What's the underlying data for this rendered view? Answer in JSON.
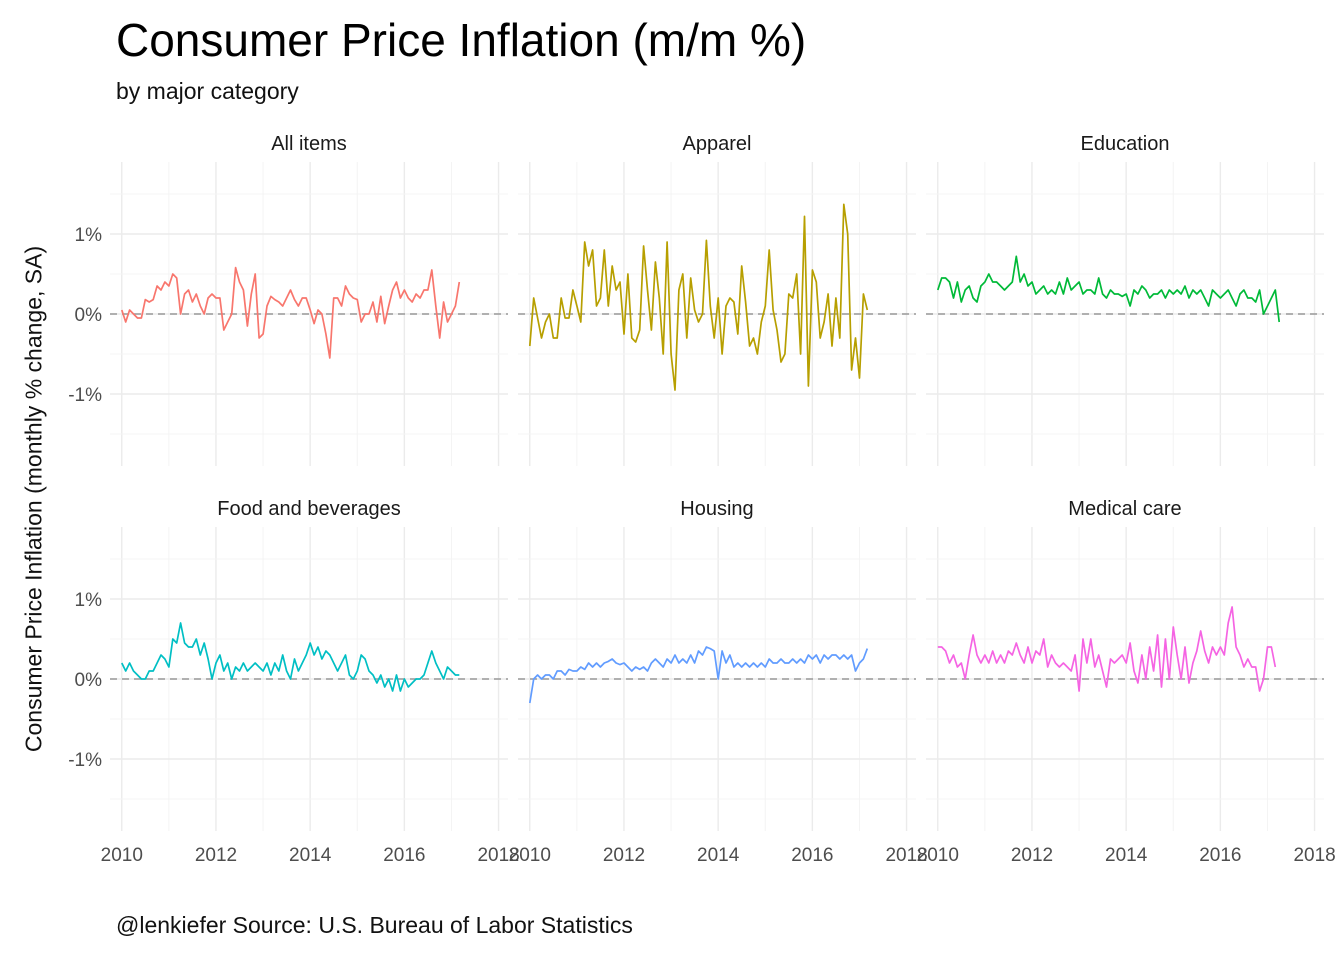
{
  "chart_data": {
    "type": "line",
    "title": "Consumer Price Inflation (m/m %)",
    "subtitle": "by major category",
    "ylabel": "Consumer Price Inflation (monthly % change, SA)",
    "xlabel": "",
    "caption": "@lenkiefer Source: U.S. Bureau of Labor Statistics",
    "xlim": [
      2009.75,
      2018.2
    ],
    "ylim": [
      -1.9,
      1.9
    ],
    "x_ticks": [
      2010,
      2012,
      2014,
      2016,
      2018
    ],
    "x_tick_labels": [
      "2010",
      "2012",
      "2014",
      "2016",
      "2018"
    ],
    "y_ticks": [
      -1,
      0,
      1
    ],
    "y_tick_labels": [
      "-1%",
      "0%",
      "1%"
    ],
    "grid": true,
    "reference_line": {
      "y": 0,
      "style": "dashed"
    },
    "x_start": 2010.0,
    "x_step": 0.08333,
    "panels": [
      {
        "name": "All items",
        "color": "#F8766D",
        "values": [
          0.05,
          -0.1,
          0.05,
          0.0,
          -0.05,
          -0.05,
          0.18,
          0.15,
          0.18,
          0.35,
          0.3,
          0.4,
          0.35,
          0.5,
          0.45,
          0.0,
          0.25,
          0.3,
          0.15,
          0.25,
          0.1,
          0.0,
          0.2,
          0.25,
          0.2,
          0.2,
          -0.2,
          -0.1,
          0.0,
          0.58,
          0.4,
          0.3,
          -0.15,
          0.25,
          0.5,
          -0.3,
          -0.25,
          0.1,
          0.22,
          0.18,
          0.15,
          0.1,
          0.2,
          0.3,
          0.18,
          0.1,
          0.2,
          0.2,
          0.05,
          -0.12,
          0.05,
          0.0,
          -0.25,
          -0.55,
          0.2,
          0.2,
          0.1,
          0.35,
          0.25,
          0.2,
          0.18,
          -0.1,
          0.0,
          0.0,
          0.15,
          -0.1,
          0.22,
          -0.12,
          0.1,
          0.3,
          0.4,
          0.2,
          0.3,
          0.2,
          0.15,
          0.25,
          0.2,
          0.3,
          0.3,
          0.55,
          0.1,
          -0.3,
          0.15,
          -0.1,
          0.0,
          0.1,
          0.4
        ]
      },
      {
        "name": "Apparel",
        "color": "#B79F00",
        "values": [
          -0.4,
          0.2,
          -0.05,
          -0.3,
          -0.1,
          0.0,
          -0.3,
          -0.3,
          0.2,
          -0.05,
          -0.05,
          0.3,
          0.1,
          -0.1,
          0.9,
          0.6,
          0.8,
          0.1,
          0.2,
          0.8,
          0.1,
          0.6,
          0.3,
          0.4,
          -0.25,
          0.5,
          -0.3,
          -0.35,
          -0.2,
          0.85,
          0.3,
          -0.2,
          0.65,
          0.2,
          -0.5,
          0.9,
          -0.5,
          -0.95,
          0.3,
          0.5,
          -0.3,
          0.45,
          0.05,
          -0.1,
          0.0,
          0.92,
          0.1,
          -0.3,
          0.2,
          -0.5,
          0.1,
          0.2,
          0.15,
          -0.25,
          0.6,
          0.15,
          -0.4,
          -0.3,
          -0.5,
          -0.1,
          0.1,
          0.8,
          0.05,
          -0.2,
          -0.6,
          -0.5,
          0.25,
          0.2,
          0.5,
          -0.5,
          1.22,
          -0.9,
          0.55,
          0.4,
          -0.3,
          -0.1,
          0.25,
          -0.4,
          0.2,
          -0.3,
          1.37,
          1.0,
          -0.7,
          -0.3,
          -0.8,
          0.25,
          0.05
        ]
      },
      {
        "name": "Education",
        "color": "#00BA38",
        "values": [
          0.3,
          0.45,
          0.45,
          0.4,
          0.2,
          0.4,
          0.15,
          0.3,
          0.35,
          0.2,
          0.15,
          0.35,
          0.4,
          0.5,
          0.4,
          0.4,
          0.35,
          0.3,
          0.35,
          0.4,
          0.72,
          0.4,
          0.5,
          0.35,
          0.4,
          0.25,
          0.3,
          0.35,
          0.25,
          0.3,
          0.25,
          0.4,
          0.25,
          0.45,
          0.3,
          0.35,
          0.4,
          0.25,
          0.3,
          0.3,
          0.25,
          0.45,
          0.25,
          0.2,
          0.3,
          0.25,
          0.25,
          0.22,
          0.25,
          0.1,
          0.3,
          0.25,
          0.35,
          0.3,
          0.2,
          0.25,
          0.25,
          0.3,
          0.2,
          0.3,
          0.25,
          0.3,
          0.25,
          0.35,
          0.2,
          0.3,
          0.25,
          0.3,
          0.2,
          0.1,
          0.3,
          0.25,
          0.2,
          0.25,
          0.3,
          0.2,
          0.1,
          0.25,
          0.3,
          0.2,
          0.2,
          0.15,
          0.3,
          0.0,
          0.1,
          0.2,
          0.3,
          -0.1
        ]
      },
      {
        "name": "Food and beverages",
        "color": "#00BFC4",
        "values": [
          0.2,
          0.1,
          0.2,
          0.1,
          0.05,
          0.0,
          0.0,
          0.1,
          0.1,
          0.2,
          0.3,
          0.25,
          0.15,
          0.5,
          0.45,
          0.7,
          0.45,
          0.4,
          0.4,
          0.5,
          0.3,
          0.45,
          0.25,
          0.0,
          0.2,
          0.3,
          0.1,
          0.2,
          0.0,
          0.15,
          0.1,
          0.2,
          0.1,
          0.15,
          0.2,
          0.15,
          0.1,
          0.2,
          0.05,
          0.2,
          0.1,
          0.3,
          0.1,
          0.0,
          0.25,
          0.1,
          0.2,
          0.3,
          0.45,
          0.3,
          0.4,
          0.25,
          0.35,
          0.3,
          0.2,
          0.1,
          0.2,
          0.3,
          0.05,
          0.0,
          0.1,
          0.3,
          0.25,
          0.1,
          0.05,
          -0.05,
          0.05,
          -0.1,
          0.0,
          -0.15,
          0.05,
          -0.15,
          0.0,
          -0.1,
          -0.05,
          0.0,
          0.0,
          0.05,
          0.2,
          0.35,
          0.2,
          0.1,
          0.0,
          0.15,
          0.1,
          0.05,
          0.05
        ]
      },
      {
        "name": "Housing",
        "color": "#619CFF",
        "values": [
          -0.3,
          0.0,
          0.05,
          0.0,
          0.05,
          0.05,
          0.0,
          0.1,
          0.1,
          0.05,
          0.12,
          0.1,
          0.1,
          0.15,
          0.12,
          0.2,
          0.15,
          0.2,
          0.15,
          0.2,
          0.22,
          0.25,
          0.2,
          0.18,
          0.2,
          0.15,
          0.1,
          0.15,
          0.12,
          0.15,
          0.1,
          0.2,
          0.25,
          0.2,
          0.15,
          0.25,
          0.2,
          0.3,
          0.2,
          0.25,
          0.2,
          0.3,
          0.2,
          0.35,
          0.3,
          0.4,
          0.38,
          0.35,
          0.0,
          0.35,
          0.2,
          0.3,
          0.15,
          0.2,
          0.15,
          0.2,
          0.15,
          0.2,
          0.15,
          0.2,
          0.15,
          0.25,
          0.2,
          0.2,
          0.25,
          0.2,
          0.2,
          0.25,
          0.2,
          0.25,
          0.2,
          0.3,
          0.25,
          0.3,
          0.2,
          0.3,
          0.25,
          0.3,
          0.3,
          0.25,
          0.3,
          0.25,
          0.3,
          0.1,
          0.2,
          0.25,
          0.38
        ]
      },
      {
        "name": "Medical care",
        "color": "#F564E3",
        "values": [
          0.4,
          0.4,
          0.35,
          0.2,
          0.3,
          0.15,
          0.2,
          0.0,
          0.3,
          0.55,
          0.3,
          0.2,
          0.3,
          0.2,
          0.35,
          0.2,
          0.3,
          0.2,
          0.35,
          0.3,
          0.45,
          0.3,
          0.2,
          0.4,
          0.2,
          0.35,
          0.3,
          0.5,
          0.15,
          0.3,
          0.2,
          0.15,
          0.2,
          0.15,
          0.1,
          0.3,
          -0.15,
          0.5,
          0.2,
          0.5,
          0.15,
          0.3,
          0.1,
          -0.1,
          0.25,
          0.2,
          0.25,
          0.3,
          0.2,
          0.45,
          0.1,
          -0.05,
          0.3,
          0.0,
          0.4,
          0.1,
          0.55,
          -0.1,
          0.5,
          0.0,
          0.65,
          0.3,
          0.0,
          0.4,
          -0.05,
          0.2,
          0.35,
          0.6,
          0.35,
          0.2,
          0.4,
          0.3,
          0.4,
          0.3,
          0.7,
          0.9,
          0.4,
          0.3,
          0.15,
          0.25,
          0.15,
          0.15,
          -0.15,
          0.0,
          0.4,
          0.4,
          0.15
        ]
      }
    ]
  }
}
